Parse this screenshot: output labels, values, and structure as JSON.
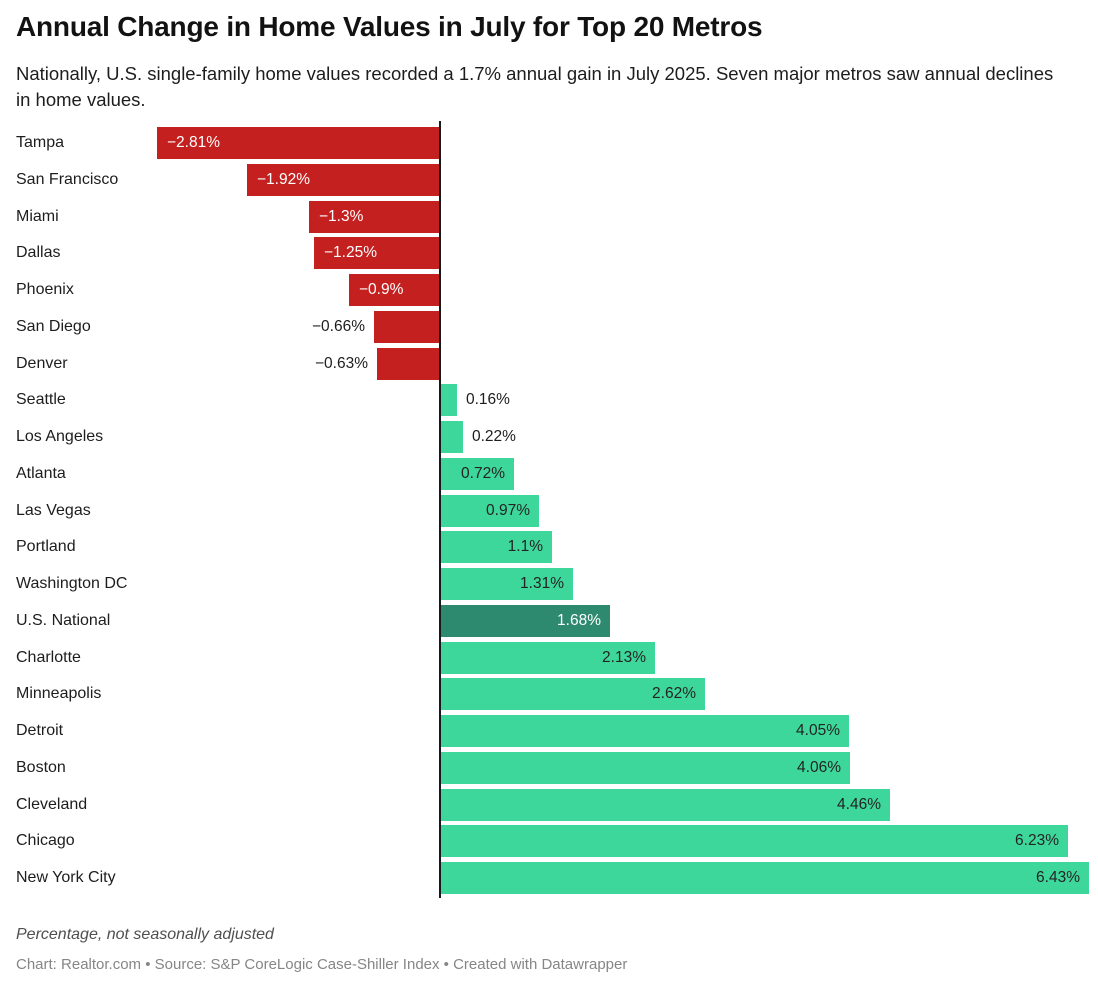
{
  "header": {
    "title": "Annual Change in Home Values in July for Top 20 Metros",
    "subtitle": "Nationally, U.S. single-family home values recorded a 1.7% annual gain in July 2025. Seven major metros saw annual declines in home values."
  },
  "chart_data": {
    "type": "bar",
    "orientation": "horizontal",
    "title": "Annual Change in Home Values in July for Top 20 Metros",
    "xlabel": "",
    "ylabel": "",
    "xlim": [
      -2.81,
      6.43
    ],
    "grid": false,
    "legend": false,
    "unit": "%",
    "categories": [
      "Tampa",
      "San Francisco",
      "Miami",
      "Dallas",
      "Phoenix",
      "San Diego",
      "Denver",
      "Seattle",
      "Los Angeles",
      "Atlanta",
      "Las Vegas",
      "Portland",
      "Washington DC",
      "U.S. National",
      "Charlotte",
      "Minneapolis",
      "Detroit",
      "Boston",
      "Cleveland",
      "Chicago",
      "New York City"
    ],
    "values": [
      -2.81,
      -1.92,
      -1.3,
      -1.25,
      -0.9,
      -0.66,
      -0.63,
      0.16,
      0.22,
      0.72,
      0.97,
      1.1,
      1.31,
      1.68,
      2.13,
      2.62,
      4.05,
      4.06,
      4.46,
      6.23,
      6.43
    ],
    "points": [
      {
        "metro": "Tampa",
        "value": -2.81,
        "label": "−2.81%",
        "label_pos": "inside",
        "highlight": false
      },
      {
        "metro": "San Francisco",
        "value": -1.92,
        "label": "−1.92%",
        "label_pos": "inside",
        "highlight": false
      },
      {
        "metro": "Miami",
        "value": -1.3,
        "label": "−1.3%",
        "label_pos": "inside",
        "highlight": false
      },
      {
        "metro": "Dallas",
        "value": -1.25,
        "label": "−1.25%",
        "label_pos": "inside",
        "highlight": false
      },
      {
        "metro": "Phoenix",
        "value": -0.9,
        "label": "−0.9%",
        "label_pos": "inside",
        "highlight": false
      },
      {
        "metro": "San Diego",
        "value": -0.66,
        "label": "−0.66%",
        "label_pos": "outside",
        "highlight": false
      },
      {
        "metro": "Denver",
        "value": -0.63,
        "label": "−0.63%",
        "label_pos": "outside",
        "highlight": false
      },
      {
        "metro": "Seattle",
        "value": 0.16,
        "label": "0.16%",
        "label_pos": "outside",
        "highlight": false
      },
      {
        "metro": "Los Angeles",
        "value": 0.22,
        "label": "0.22%",
        "label_pos": "outside",
        "highlight": false
      },
      {
        "metro": "Atlanta",
        "value": 0.72,
        "label": "0.72%",
        "label_pos": "inside",
        "highlight": false
      },
      {
        "metro": "Las Vegas",
        "value": 0.97,
        "label": "0.97%",
        "label_pos": "inside",
        "highlight": false
      },
      {
        "metro": "Portland",
        "value": 1.1,
        "label": "1.1%",
        "label_pos": "inside",
        "highlight": false
      },
      {
        "metro": "Washington DC",
        "value": 1.31,
        "label": "1.31%",
        "label_pos": "inside",
        "highlight": false
      },
      {
        "metro": "U.S. National",
        "value": 1.68,
        "label": "1.68%",
        "label_pos": "inside",
        "highlight": true
      },
      {
        "metro": "Charlotte",
        "value": 2.13,
        "label": "2.13%",
        "label_pos": "inside",
        "highlight": false
      },
      {
        "metro": "Minneapolis",
        "value": 2.62,
        "label": "2.62%",
        "label_pos": "inside",
        "highlight": false
      },
      {
        "metro": "Detroit",
        "value": 4.05,
        "label": "4.05%",
        "label_pos": "inside",
        "highlight": false
      },
      {
        "metro": "Boston",
        "value": 4.06,
        "label": "4.06%",
        "label_pos": "inside",
        "highlight": false
      },
      {
        "metro": "Cleveland",
        "value": 4.46,
        "label": "4.46%",
        "label_pos": "inside",
        "highlight": false
      },
      {
        "metro": "Chicago",
        "value": 6.23,
        "label": "6.23%",
        "label_pos": "inside",
        "highlight": false
      },
      {
        "metro": "New York City",
        "value": 6.43,
        "label": "6.43%",
        "label_pos": "inside",
        "highlight": false
      }
    ],
    "colors": {
      "negative": "#c4201f",
      "positive": "#3dd79b",
      "highlight": "#2d8a6e",
      "value_inside_negative": "#ffffff",
      "value_inside_positive": "#232323",
      "value_inside_highlight": "#ffffff",
      "value_outside": "#1d1d1d",
      "axis": "#18191c"
    }
  },
  "footer": {
    "note": "Percentage, not seasonally adjusted",
    "byline": "Chart: Realtor.com • Source: S&P CoreLogic Case-Shiller Index • Created with Datawrapper"
  }
}
